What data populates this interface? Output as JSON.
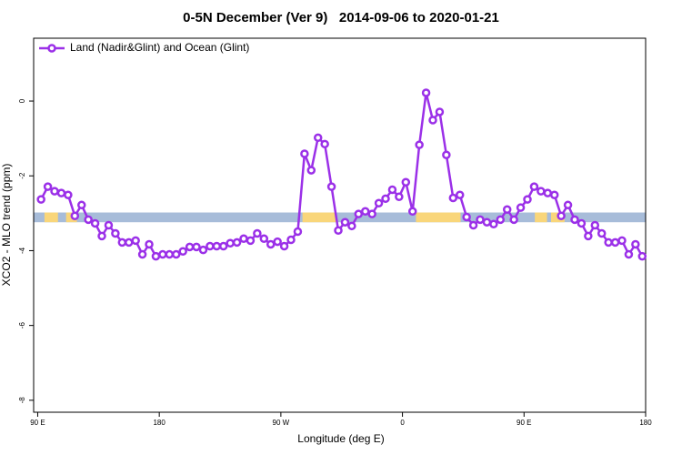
{
  "chart_data": {
    "type": "line",
    "title": "0-5N December (Ver 9)   2014-09-06 to 2020-01-21",
    "x_label": "Longitude (deg E)",
    "y_label": "XCO2 - MLO trend (ppm)",
    "xlim": [
      87,
      540
    ],
    "ylim": [
      -8.32,
      1.68
    ],
    "xticks": [
      {
        "value": 90,
        "label": "90 E"
      },
      {
        "value": 180,
        "label": "180"
      },
      {
        "value": 270,
        "label": "90 W"
      },
      {
        "value": 360,
        "label": "0"
      },
      {
        "value": 450,
        "label": "90 E"
      },
      {
        "value": 540,
        "label": "180"
      }
    ],
    "yticks": [
      0,
      -2,
      -4,
      -6,
      -8
    ],
    "legend": "top-left",
    "band": {
      "ylim": [
        -3.24,
        -2.98
      ],
      "color": "#a7bcd9",
      "land_color": "#f9d67a",
      "land": [
        [
          95,
          105
        ],
        [
          111,
          119
        ],
        [
          286,
          311
        ],
        [
          370,
          403
        ],
        [
          458,
          467
        ],
        [
          470,
          480
        ]
      ]
    },
    "series": [
      {
        "name": "Land (Nadir&Glint) and Ocean (Glint)",
        "color": "#9b30e8",
        "x": [
          92.5,
          97.5,
          102.5,
          107.5,
          112.5,
          117.5,
          122.5,
          127.5,
          132.5,
          137.5,
          142.5,
          147.5,
          152.5,
          157.5,
          162.5,
          167.5,
          172.5,
          177.5,
          182.5,
          187.5,
          192.5,
          197.5,
          202.5,
          207.5,
          212.5,
          217.5,
          222.5,
          227.5,
          232.5,
          237.5,
          242.5,
          247.5,
          252.5,
          257.5,
          262.5,
          267.5,
          272.5,
          277.5,
          282.5,
          287.5,
          292.5,
          297.5,
          302.5,
          307.5,
          312.5,
          317.5,
          322.5,
          327.5,
          332.5,
          337.5,
          342.5,
          347.5,
          352.5,
          357.5,
          362.5,
          367.5,
          372.5,
          377.5,
          382.5,
          387.5,
          392.5,
          397.5,
          402.5,
          407.5,
          412.5,
          417.5,
          422.5,
          427.5,
          432.5,
          437.5,
          442.5,
          447.5,
          452.5,
          457.5,
          462.5,
          467.5,
          472.5,
          477.5,
          482.5,
          487.5,
          492.5,
          497.5,
          502.5,
          507.5,
          512.5,
          517.5,
          522.5,
          527.5,
          532.5,
          537.5
        ],
        "values": [
          -2.63,
          -2.29,
          -2.41,
          -2.46,
          -2.51,
          -3.07,
          -2.78,
          -3.17,
          -3.27,
          -3.61,
          -3.32,
          -3.54,
          -3.78,
          -3.78,
          -3.73,
          -4.1,
          -3.83,
          -4.15,
          -4.1,
          -4.1,
          -4.1,
          -4.02,
          -3.9,
          -3.9,
          -3.98,
          -3.88,
          -3.88,
          -3.88,
          -3.8,
          -3.78,
          -3.68,
          -3.73,
          -3.54,
          -3.68,
          -3.83,
          -3.76,
          -3.88,
          -3.71,
          -3.49,
          -1.41,
          -1.85,
          -0.98,
          -1.15,
          -2.29,
          -3.46,
          -3.24,
          -3.34,
          -3.02,
          -2.95,
          -3.02,
          -2.73,
          -2.61,
          -2.37,
          -2.56,
          -2.17,
          -2.95,
          -1.17,
          0.22,
          -0.51,
          -0.29,
          -1.44,
          -2.59,
          -2.51,
          -3.1,
          -3.32,
          -3.17,
          -3.24,
          -3.29,
          -3.17,
          -2.9,
          -3.17,
          -2.85,
          -2.63,
          -2.29,
          -2.41,
          -2.46,
          -2.51,
          -3.07,
          -2.78,
          -3.17,
          -3.27,
          -3.61,
          -3.32,
          -3.54,
          -3.78,
          -3.78,
          -3.73,
          -4.1,
          -3.83,
          -4.15
        ]
      }
    ]
  }
}
